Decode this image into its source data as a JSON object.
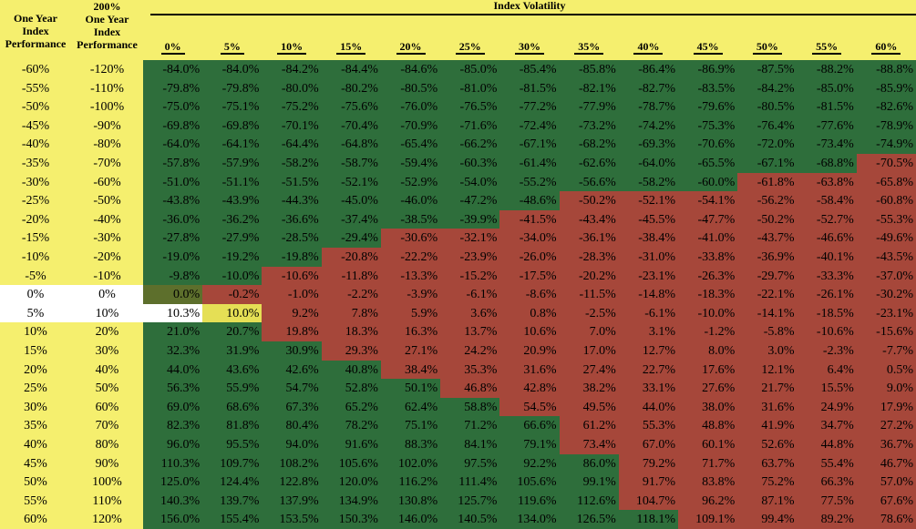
{
  "header": {
    "col1": [
      "One Year",
      "Index",
      "Performance"
    ],
    "col2": [
      "200%",
      "One Year",
      "Index",
      "Performance"
    ],
    "volatility_title": "Index Volatility",
    "volatility_levels": [
      "0%",
      "5%",
      "10%",
      "15%",
      "20%",
      "25%",
      "30%",
      "35%",
      "40%",
      "45%",
      "50%",
      "55%",
      "60%"
    ]
  },
  "colors": {
    "background": "#f5ef6e",
    "green": "#2e6e3b",
    "red": "#a6473a",
    "olive": "#5d6f2c",
    "yellow_cell": "#e5df55",
    "white": "#ffffff"
  },
  "rows": [
    {
      "perf": "-60%",
      "lev": "-120%",
      "vals": [
        "-84.0%",
        "-84.0%",
        "-84.2%",
        "-84.4%",
        "-84.6%",
        "-85.0%",
        "-85.4%",
        "-85.8%",
        "-86.4%",
        "-86.9%",
        "-87.5%",
        "-88.2%",
        "-88.8%"
      ],
      "fill": "ggggggggggggg"
    },
    {
      "perf": "-55%",
      "lev": "-110%",
      "vals": [
        "-79.8%",
        "-79.8%",
        "-80.0%",
        "-80.2%",
        "-80.5%",
        "-81.0%",
        "-81.5%",
        "-82.1%",
        "-82.7%",
        "-83.5%",
        "-84.2%",
        "-85.0%",
        "-85.9%"
      ],
      "fill": "ggggggggggggg"
    },
    {
      "perf": "-50%",
      "lev": "-100%",
      "vals": [
        "-75.0%",
        "-75.1%",
        "-75.2%",
        "-75.6%",
        "-76.0%",
        "-76.5%",
        "-77.2%",
        "-77.9%",
        "-78.7%",
        "-79.6%",
        "-80.5%",
        "-81.5%",
        "-82.6%"
      ],
      "fill": "ggggggggggggg"
    },
    {
      "perf": "-45%",
      "lev": "-90%",
      "vals": [
        "-69.8%",
        "-69.8%",
        "-70.1%",
        "-70.4%",
        "-70.9%",
        "-71.6%",
        "-72.4%",
        "-73.2%",
        "-74.2%",
        "-75.3%",
        "-76.4%",
        "-77.6%",
        "-78.9%"
      ],
      "fill": "ggggggggggggg"
    },
    {
      "perf": "-40%",
      "lev": "-80%",
      "vals": [
        "-64.0%",
        "-64.1%",
        "-64.4%",
        "-64.8%",
        "-65.4%",
        "-66.2%",
        "-67.1%",
        "-68.2%",
        "-69.3%",
        "-70.6%",
        "-72.0%",
        "-73.4%",
        "-74.9%"
      ],
      "fill": "ggggggggggggg"
    },
    {
      "perf": "-35%",
      "lev": "-70%",
      "vals": [
        "-57.8%",
        "-57.9%",
        "-58.2%",
        "-58.7%",
        "-59.4%",
        "-60.3%",
        "-61.4%",
        "-62.6%",
        "-64.0%",
        "-65.5%",
        "-67.1%",
        "-68.8%",
        "-70.5%"
      ],
      "fill": "ggggggggggggr"
    },
    {
      "perf": "-30%",
      "lev": "-60%",
      "vals": [
        "-51.0%",
        "-51.1%",
        "-51.5%",
        "-52.1%",
        "-52.9%",
        "-54.0%",
        "-55.2%",
        "-56.6%",
        "-58.2%",
        "-60.0%",
        "-61.8%",
        "-63.8%",
        "-65.8%"
      ],
      "fill": "ggggggggggrrr"
    },
    {
      "perf": "-25%",
      "lev": "-50%",
      "vals": [
        "-43.8%",
        "-43.9%",
        "-44.3%",
        "-45.0%",
        "-46.0%",
        "-47.2%",
        "-48.6%",
        "-50.2%",
        "-52.1%",
        "-54.1%",
        "-56.2%",
        "-58.4%",
        "-60.8%"
      ],
      "fill": "gggggggrrrrrr"
    },
    {
      "perf": "-20%",
      "lev": "-40%",
      "vals": [
        "-36.0%",
        "-36.2%",
        "-36.6%",
        "-37.4%",
        "-38.5%",
        "-39.9%",
        "-41.5%",
        "-43.4%",
        "-45.5%",
        "-47.7%",
        "-50.2%",
        "-52.7%",
        "-55.3%"
      ],
      "fill": "ggggggrrrrrrr"
    },
    {
      "perf": "-15%",
      "lev": "-30%",
      "vals": [
        "-27.8%",
        "-27.9%",
        "-28.5%",
        "-29.4%",
        "-30.6%",
        "-32.1%",
        "-34.0%",
        "-36.1%",
        "-38.4%",
        "-41.0%",
        "-43.7%",
        "-46.6%",
        "-49.6%"
      ],
      "fill": "ggggrrrrrrrrr"
    },
    {
      "perf": "-10%",
      "lev": "-20%",
      "vals": [
        "-19.0%",
        "-19.2%",
        "-19.8%",
        "-20.8%",
        "-22.2%",
        "-23.9%",
        "-26.0%",
        "-28.3%",
        "-31.0%",
        "-33.8%",
        "-36.9%",
        "-40.1%",
        "-43.5%"
      ],
      "fill": "gggrrrrrrrrrr"
    },
    {
      "perf": "-5%",
      "lev": "-10%",
      "vals": [
        "-9.8%",
        "-10.0%",
        "-10.6%",
        "-11.8%",
        "-13.3%",
        "-15.2%",
        "-17.5%",
        "-20.2%",
        "-23.1%",
        "-26.3%",
        "-29.7%",
        "-33.3%",
        "-37.0%"
      ],
      "fill": "ggrrrrrrrrrrr"
    },
    {
      "perf": "0%",
      "lev": "0%",
      "vals": [
        "0.0%",
        "-0.2%",
        "-1.0%",
        "-2.2%",
        "-3.9%",
        "-6.1%",
        "-8.6%",
        "-11.5%",
        "-14.8%",
        "-18.3%",
        "-22.1%",
        "-26.1%",
        "-30.2%"
      ],
      "fill": "orrrrrrrrrrrr",
      "white": true
    },
    {
      "perf": "5%",
      "lev": "10%",
      "vals": [
        "10.3%",
        "10.0%",
        "9.2%",
        "7.8%",
        "5.9%",
        "3.6%",
        "0.8%",
        "-2.5%",
        "-6.1%",
        "-10.0%",
        "-14.1%",
        "-18.5%",
        "-23.1%"
      ],
      "fill": "wyrrrrrrrrrrr",
      "white": true
    },
    {
      "perf": "10%",
      "lev": "20%",
      "vals": [
        "21.0%",
        "20.7%",
        "19.8%",
        "18.3%",
        "16.3%",
        "13.7%",
        "10.6%",
        "7.0%",
        "3.1%",
        "-1.2%",
        "-5.8%",
        "-10.6%",
        "-15.6%"
      ],
      "fill": "ggrrrrrrrrrrr"
    },
    {
      "perf": "15%",
      "lev": "30%",
      "vals": [
        "32.3%",
        "31.9%",
        "30.9%",
        "29.3%",
        "27.1%",
        "24.2%",
        "20.9%",
        "17.0%",
        "12.7%",
        "8.0%",
        "3.0%",
        "-2.3%",
        "-7.7%"
      ],
      "fill": "gggrrrrrrrrrr"
    },
    {
      "perf": "20%",
      "lev": "40%",
      "vals": [
        "44.0%",
        "43.6%",
        "42.6%",
        "40.8%",
        "38.4%",
        "35.3%",
        "31.6%",
        "27.4%",
        "22.7%",
        "17.6%",
        "12.1%",
        "6.4%",
        "0.5%"
      ],
      "fill": "ggggrrrrrrrrr"
    },
    {
      "perf": "25%",
      "lev": "50%",
      "vals": [
        "56.3%",
        "55.9%",
        "54.7%",
        "52.8%",
        "50.1%",
        "46.8%",
        "42.8%",
        "38.2%",
        "33.1%",
        "27.6%",
        "21.7%",
        "15.5%",
        "9.0%"
      ],
      "fill": "gggggrrrrrrrr"
    },
    {
      "perf": "30%",
      "lev": "60%",
      "vals": [
        "69.0%",
        "68.6%",
        "67.3%",
        "65.2%",
        "62.4%",
        "58.8%",
        "54.5%",
        "49.5%",
        "44.0%",
        "38.0%",
        "31.6%",
        "24.9%",
        "17.9%"
      ],
      "fill": "ggggggrrrrrrr"
    },
    {
      "perf": "35%",
      "lev": "70%",
      "vals": [
        "82.3%",
        "81.8%",
        "80.4%",
        "78.2%",
        "75.1%",
        "71.2%",
        "66.6%",
        "61.2%",
        "55.3%",
        "48.8%",
        "41.9%",
        "34.7%",
        "27.2%"
      ],
      "fill": "gggggggrrrrrr"
    },
    {
      "perf": "40%",
      "lev": "80%",
      "vals": [
        "96.0%",
        "95.5%",
        "94.0%",
        "91.6%",
        "88.3%",
        "84.1%",
        "79.1%",
        "73.4%",
        "67.0%",
        "60.1%",
        "52.6%",
        "44.8%",
        "36.7%"
      ],
      "fill": "gggggggrrrrrr"
    },
    {
      "perf": "45%",
      "lev": "90%",
      "vals": [
        "110.3%",
        "109.7%",
        "108.2%",
        "105.6%",
        "102.0%",
        "97.5%",
        "92.2%",
        "86.0%",
        "79.2%",
        "71.7%",
        "63.7%",
        "55.4%",
        "46.7%"
      ],
      "fill": "ggggggggrrrrr"
    },
    {
      "perf": "50%",
      "lev": "100%",
      "vals": [
        "125.0%",
        "124.4%",
        "122.8%",
        "120.0%",
        "116.2%",
        "111.4%",
        "105.6%",
        "99.1%",
        "91.7%",
        "83.8%",
        "75.2%",
        "66.3%",
        "57.0%"
      ],
      "fill": "ggggggggrrrrr"
    },
    {
      "perf": "55%",
      "lev": "110%",
      "vals": [
        "140.3%",
        "139.7%",
        "137.9%",
        "134.9%",
        "130.8%",
        "125.7%",
        "119.6%",
        "112.6%",
        "104.7%",
        "96.2%",
        "87.1%",
        "77.5%",
        "67.6%"
      ],
      "fill": "ggggggggrrrrr"
    },
    {
      "perf": "60%",
      "lev": "120%",
      "vals": [
        "156.0%",
        "155.4%",
        "153.5%",
        "150.3%",
        "146.0%",
        "140.5%",
        "134.0%",
        "126.5%",
        "118.1%",
        "109.1%",
        "99.4%",
        "89.2%",
        "78.6%"
      ],
      "fill": "gggggggggrrrr"
    }
  ]
}
